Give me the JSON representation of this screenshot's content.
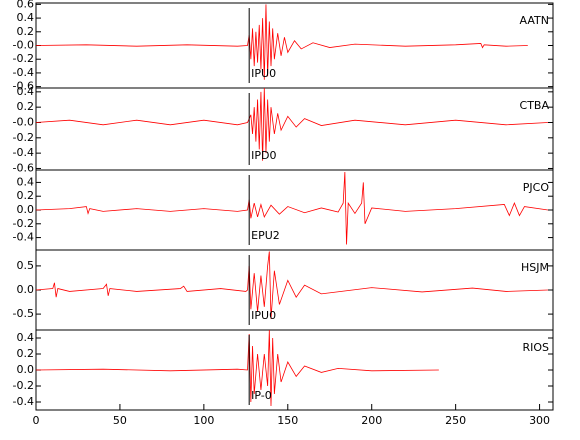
{
  "chart_data": [
    {
      "type": "line",
      "label": "AATN",
      "pick_label": "IPU0",
      "pick": 127,
      "color": "#ff0000",
      "xlim": [
        0,
        308
      ],
      "ylim": [
        -0.62,
        0.62
      ],
      "yticks": [
        0.6,
        0.4,
        0.2,
        {
          "value": 0,
          "label": "-0.0"
        },
        -0.2,
        -0.4,
        -0.6
      ],
      "x": [
        0,
        30,
        60,
        90,
        120,
        126,
        127,
        128,
        129,
        130,
        131,
        132,
        133,
        134,
        135,
        136,
        137,
        138,
        139,
        140,
        141,
        142,
        144,
        146,
        148,
        150,
        154,
        158,
        165,
        175,
        190,
        220,
        250,
        265,
        266,
        267,
        280,
        293
      ],
      "values": [
        0,
        0.01,
        -0.01,
        0.01,
        -0.01,
        0,
        0.15,
        -0.2,
        0.25,
        -0.3,
        0.2,
        -0.25,
        0.3,
        -0.35,
        0.4,
        -0.5,
        0.6,
        -0.45,
        0.35,
        -0.3,
        0.25,
        -0.2,
        0.18,
        -0.15,
        0.12,
        -0.1,
        0.07,
        -0.05,
        0.04,
        -0.03,
        0.02,
        -0.01,
        0.01,
        0.03,
        -0.03,
        0.01,
        -0.01,
        0
      ]
    },
    {
      "type": "line",
      "label": "CTBA",
      "pick_label": "IPD0",
      "pick": 127,
      "color": "#ff0000",
      "xlim": [
        0,
        308
      ],
      "ylim": [
        -0.62,
        0.45
      ],
      "yticks": [
        0.4,
        0.2,
        {
          "value": 0,
          "label": "-0.0"
        },
        -0.2,
        -0.4,
        -0.6
      ],
      "x": [
        0,
        20,
        40,
        60,
        80,
        100,
        120,
        126,
        128,
        129,
        130,
        131,
        132,
        133,
        134,
        135,
        136,
        137,
        138,
        139,
        140,
        142,
        144,
        146,
        150,
        155,
        160,
        170,
        190,
        220,
        250,
        280,
        305
      ],
      "values": [
        0,
        0.03,
        -0.03,
        0.03,
        -0.03,
        0.03,
        -0.03,
        0,
        0.1,
        -0.15,
        0.2,
        -0.25,
        0.3,
        -0.35,
        0.4,
        -0.5,
        0.45,
        -0.4,
        0.3,
        -0.25,
        0.2,
        -0.15,
        0.12,
        -0.1,
        0.08,
        -0.06,
        0.05,
        -0.04,
        0.03,
        -0.03,
        0.03,
        -0.03,
        0
      ]
    },
    {
      "type": "line",
      "label": "PJCO",
      "pick_label": "EPU2",
      "pick": 127,
      "color": "#ff0000",
      "xlim": [
        0,
        308
      ],
      "ylim": [
        -0.58,
        0.58
      ],
      "yticks": [
        0.4,
        0.2,
        {
          "value": 0,
          "label": "0.0"
        },
        -0.2,
        -0.4
      ],
      "x": [
        0,
        20,
        30,
        31,
        32,
        40,
        60,
        80,
        100,
        120,
        126,
        127,
        128,
        130,
        132,
        134,
        136,
        140,
        145,
        150,
        160,
        170,
        180,
        183,
        184,
        185,
        186,
        190,
        194,
        195,
        196,
        200,
        220,
        250,
        279,
        282,
        285,
        288,
        291,
        305
      ],
      "values": [
        0,
        0.02,
        0.05,
        -0.05,
        0.02,
        -0.02,
        0.02,
        -0.02,
        0.02,
        -0.02,
        0,
        0.15,
        -0.12,
        0.1,
        -0.1,
        0.08,
        -0.1,
        0.07,
        -0.06,
        0.05,
        -0.04,
        0.03,
        -0.03,
        0.1,
        0.55,
        -0.5,
        0.1,
        -0.05,
        0.1,
        0.4,
        -0.2,
        0.03,
        -0.02,
        0.02,
        0.08,
        -0.08,
        0.1,
        -0.08,
        0.05,
        0
      ]
    },
    {
      "type": "line",
      "label": "HSJM",
      "pick_label": "IPU0",
      "pick": 127,
      "color": "#ff0000",
      "xlim": [
        0,
        308
      ],
      "ylim": [
        -0.83,
        0.83
      ],
      "yticks": [
        0.5,
        {
          "value": 0,
          "label": "0.0"
        },
        -0.5
      ],
      "x": [
        0,
        10,
        11,
        12,
        13,
        20,
        40,
        42,
        43,
        44,
        60,
        86,
        88,
        90,
        110,
        125,
        126,
        127,
        128,
        130,
        132,
        134,
        136,
        138,
        139,
        140,
        142,
        145,
        150,
        155,
        160,
        170,
        200,
        230,
        260,
        280,
        305
      ],
      "values": [
        0,
        0.03,
        0.15,
        -0.15,
        0.03,
        -0.03,
        0.03,
        0.12,
        -0.12,
        0.03,
        -0.03,
        0.03,
        0.08,
        -0.03,
        0.03,
        -0.03,
        0,
        0.5,
        -0.4,
        0.35,
        -0.45,
        0.3,
        -0.35,
        0.5,
        0.8,
        -0.6,
        0.4,
        -0.3,
        0.2,
        -0.15,
        0.1,
        -0.08,
        0.05,
        -0.04,
        0.04,
        -0.03,
        0
      ]
    },
    {
      "type": "line",
      "label": "RIOS",
      "pick_label": "IP-0",
      "pick": 127,
      "color": "#ff0000",
      "xlim": [
        0,
        308
      ],
      "ylim": [
        -0.5,
        0.5
      ],
      "yticks": [
        0.4,
        0.2,
        {
          "value": 0,
          "label": "0.0"
        },
        -0.2,
        -0.4
      ],
      "xticks": [
        0,
        50,
        100,
        150,
        200,
        250,
        300
      ],
      "x": [
        0,
        40,
        80,
        120,
        126,
        127,
        128,
        129,
        130,
        132,
        134,
        136,
        138,
        139,
        140,
        141,
        142,
        144,
        146,
        150,
        155,
        160,
        170,
        180,
        200,
        240
      ],
      "values": [
        0,
        0.01,
        -0.01,
        0.01,
        0,
        0.45,
        -0.4,
        0.3,
        -0.3,
        0.2,
        -0.25,
        0.2,
        -0.2,
        0.5,
        -0.45,
        0.4,
        -0.3,
        0.2,
        -0.15,
        0.1,
        -0.08,
        0.05,
        -0.03,
        0.02,
        -0.01,
        0
      ]
    }
  ]
}
